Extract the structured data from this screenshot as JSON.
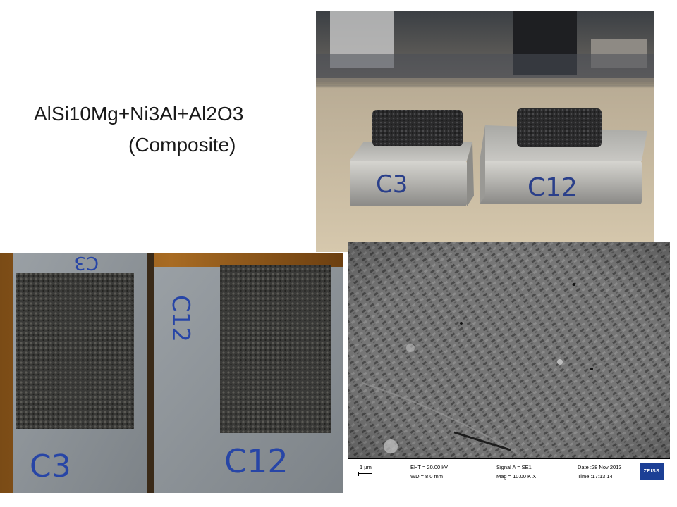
{
  "slide": {
    "title_line1": "AlSi10Mg+Ni3Al+Al2O3",
    "title_line2": "(Composite)"
  },
  "photo_side": {
    "sample_labels": [
      "C3",
      "C12"
    ]
  },
  "photo_top": {
    "sample_labels": [
      "C3",
      "C12"
    ],
    "side_labels": [
      "C3",
      "C12"
    ]
  },
  "sem": {
    "scale_bar": "1 µm",
    "eht": "EHT = 20.00 kV",
    "wd": "WD =  8.0 mm",
    "signal": "Signal A = SE1",
    "mag": "Mag = 10.00 K X",
    "date": "Date :28 Nov 2013",
    "time": "Time :17:13:14",
    "logo": "ZEISS"
  }
}
